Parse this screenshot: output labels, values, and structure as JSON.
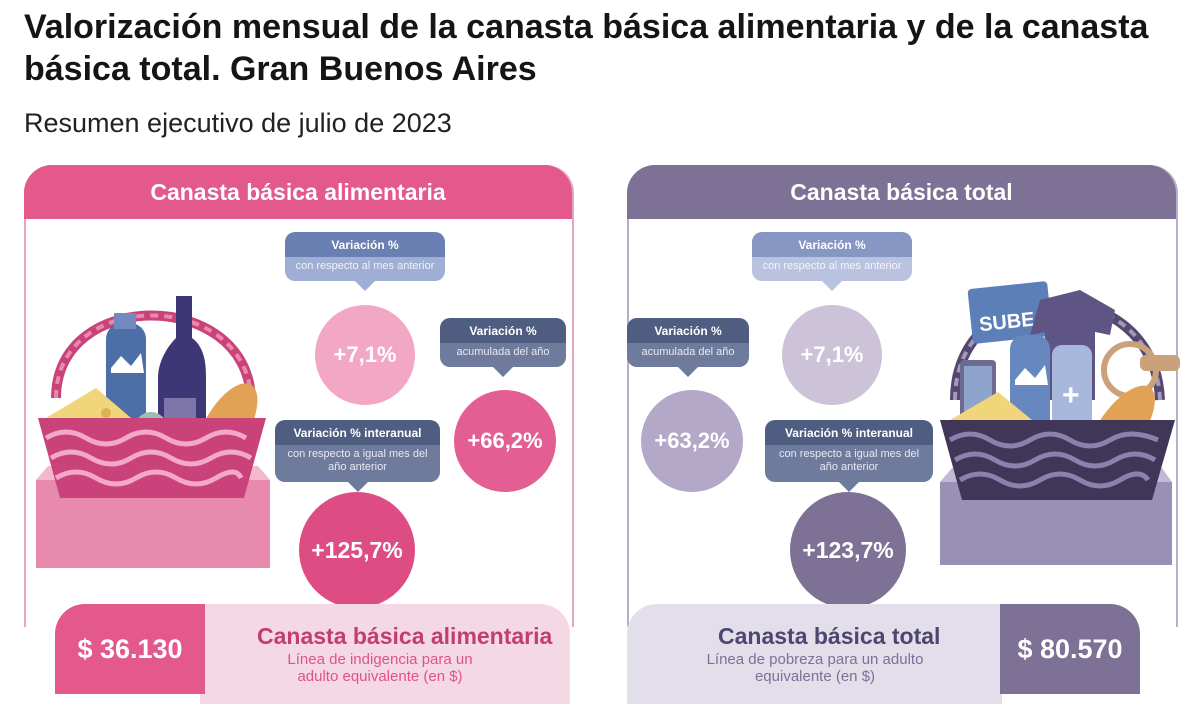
{
  "header": {
    "title": "Valorización mensual de la canasta básica alimentaria y de la canasta básica total. Gran Buenos Aires",
    "subtitle": "Resumen ejecutivo de julio de 2023"
  },
  "cba": {
    "header": "Canasta básica alimentaria",
    "mensual": {
      "title": "Variación %",
      "sub": "con respecto al mes anterior",
      "value": "+7,1%"
    },
    "acumulada": {
      "title": "Variación %",
      "sub": "acumulada del año",
      "value": "+66,2%"
    },
    "interanual": {
      "title": "Variación % interanual",
      "sub": "con respecto a igual mes del año anterior",
      "value": "+125,7%"
    },
    "amount": "$ 36.130",
    "bottom_title": "Canasta básica alimentaria",
    "bottom_sub": "Línea de indigencia para un adulto equivalente (en $)"
  },
  "cbt": {
    "header": "Canasta básica total",
    "mensual": {
      "title": "Variación %",
      "sub": "con respecto al mes anterior",
      "value": "+7,1%"
    },
    "acumulada": {
      "title": "Variación %",
      "sub": "acumulada del año",
      "value": "+63,2%"
    },
    "interanual": {
      "title": "Variación % interanual",
      "sub": "con respecto a igual mes del año anterior",
      "value": "+123,7%"
    },
    "amount": "$ 80.570",
    "bottom_title": "Canasta básica total",
    "bottom_sub": "Línea de pobreza para un adulto equivalente (en $)",
    "card_text": "SUBE"
  },
  "colors": {
    "cba_primary": "#e3598b",
    "cba_light": "#f4d8e3",
    "cbt_primary": "#7d7196",
    "cbt_light": "#e2dfea"
  }
}
